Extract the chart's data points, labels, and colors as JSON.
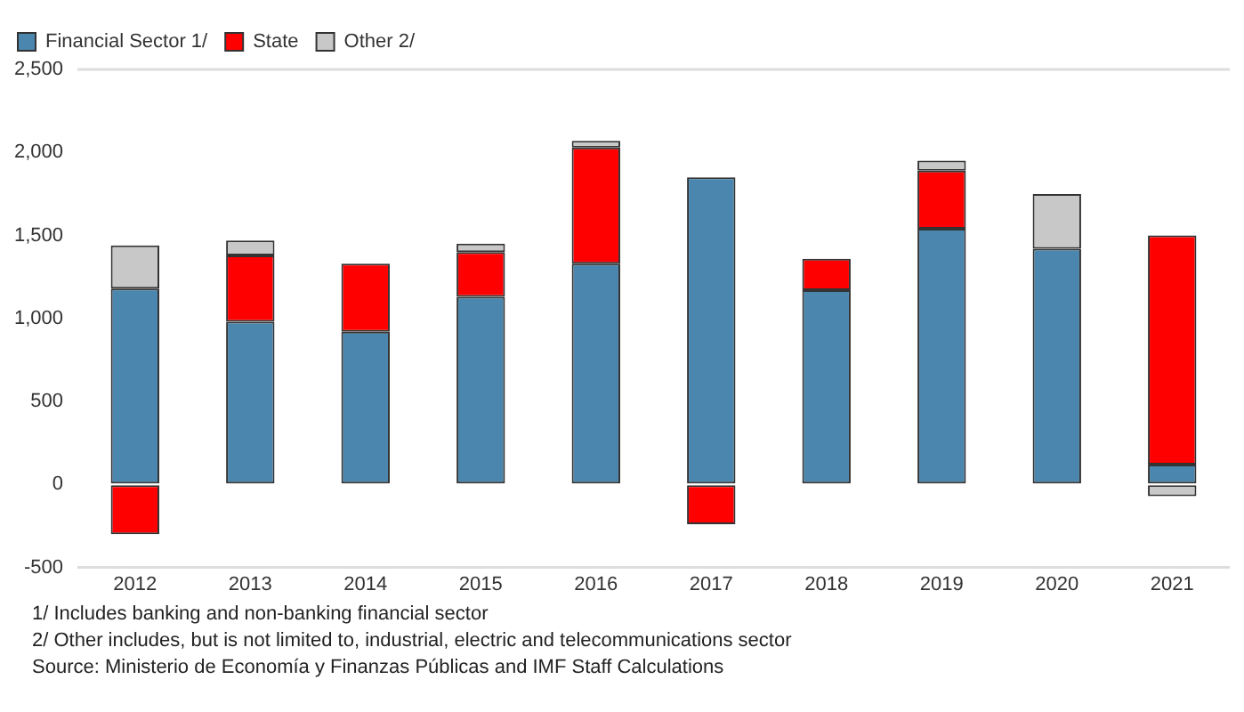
{
  "chart_data": {
    "type": "bar",
    "stacked": true,
    "categories": [
      "2012",
      "2013",
      "2014",
      "2015",
      "2016",
      "2017",
      "2018",
      "2019",
      "2020",
      "2021"
    ],
    "series": [
      {
        "name": "Financial Sector 1/",
        "color": "#4a86ad",
        "values": [
          1180,
          980,
          920,
          1130,
          1330,
          1850,
          1170,
          1540,
          1420,
          120
        ]
      },
      {
        "name": "State",
        "color": "#ff0000",
        "values": [
          -300,
          400,
          410,
          270,
          700,
          -240,
          190,
          350,
          null,
          1380
        ]
      },
      {
        "name": "Other 2/",
        "color": "#c8c8c8",
        "values": [
          260,
          90,
          null,
          50,
          40,
          null,
          null,
          60,
          330,
          -70
        ]
      }
    ],
    "ylim": [
      -500,
      2500
    ],
    "yticks": [
      {
        "value": -500,
        "label": "-500"
      },
      {
        "value": 0,
        "label": "0"
      },
      {
        "value": 500,
        "label": "500"
      },
      {
        "value": 1000,
        "label": "1,000"
      },
      {
        "value": 1500,
        "label": "1,500"
      },
      {
        "value": 2000,
        "label": "2,000"
      },
      {
        "value": 2500,
        "label": "2,500"
      }
    ],
    "grid": false,
    "legend": "top left",
    "annotations": [
      "1/ Includes banking and non-banking financial sector",
      "2/ Other includes, but is not limited to, industrial, electric and telecommunications sector",
      "Source: Ministerio de Economía y Finanzas Públicas and IMF Staff Calculations"
    ]
  }
}
